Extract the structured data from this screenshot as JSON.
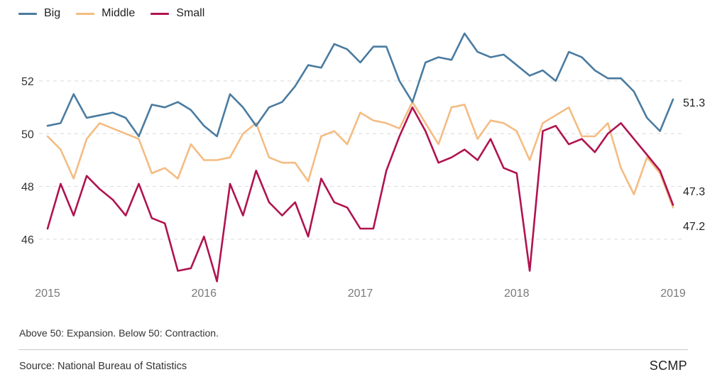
{
  "chart_data": {
    "type": "line",
    "title": "",
    "xlabel": "",
    "ylabel": "",
    "ylim": [
      44,
      54
    ],
    "x_start": "2015-01",
    "x_step": "month",
    "x_ticks": [
      "2015",
      "2016",
      "2017",
      "2018",
      "2019"
    ],
    "y_ticks": [
      46,
      48,
      50,
      52
    ],
    "grid": true,
    "legend_position": "top-left",
    "series": [
      {
        "name": "Big",
        "color": "#4a7ba0",
        "end_label": "51.3",
        "values": [
          50.3,
          50.4,
          51.5,
          50.6,
          50.7,
          50.8,
          50.6,
          49.9,
          51.1,
          51.0,
          51.2,
          50.9,
          50.3,
          49.9,
          51.5,
          51.0,
          50.3,
          51.0,
          51.2,
          51.8,
          52.6,
          52.5,
          53.4,
          53.2,
          52.7,
          53.3,
          53.3,
          52.0,
          51.2,
          52.7,
          52.9,
          52.8,
          53.8,
          53.1,
          52.9,
          53.0,
          52.6,
          52.2,
          52.4,
          52.0,
          53.1,
          52.9,
          52.4,
          52.1,
          52.1,
          51.6,
          50.6,
          50.1,
          51.3
        ]
      },
      {
        "name": "Middle",
        "color": "#f4bc82",
        "end_label": "47.2",
        "values": [
          49.9,
          49.4,
          48.3,
          49.8,
          50.4,
          50.2,
          50.0,
          49.8,
          48.5,
          48.7,
          48.3,
          49.6,
          49.0,
          49.0,
          49.1,
          50.0,
          50.4,
          49.1,
          48.9,
          48.9,
          48.2,
          49.9,
          50.1,
          49.6,
          50.8,
          50.5,
          50.4,
          50.2,
          51.2,
          50.4,
          49.6,
          51.0,
          51.1,
          49.8,
          50.5,
          50.4,
          50.1,
          49.0,
          50.4,
          50.7,
          51.0,
          49.9,
          49.9,
          50.4,
          48.7,
          47.7,
          49.1,
          48.5,
          47.2
        ]
      },
      {
        "name": "Small",
        "color": "#b0134f",
        "end_label": "47.3",
        "values": [
          46.4,
          48.1,
          46.9,
          48.4,
          47.9,
          47.5,
          46.9,
          48.1,
          46.8,
          46.6,
          44.8,
          44.9,
          46.1,
          44.4,
          48.1,
          46.9,
          48.6,
          47.4,
          46.9,
          47.4,
          46.1,
          48.3,
          47.4,
          47.2,
          46.4,
          46.4,
          48.6,
          49.9,
          51.0,
          50.1,
          48.9,
          49.1,
          49.4,
          49.0,
          49.8,
          48.7,
          48.5,
          44.8,
          50.1,
          50.3,
          49.6,
          49.8,
          49.3,
          50.0,
          50.4,
          49.8,
          49.2,
          48.6,
          47.3
        ]
      }
    ]
  },
  "legend": [
    {
      "label": "Big",
      "color": "#4a7ba0"
    },
    {
      "label": "Middle",
      "color": "#f4bc82"
    },
    {
      "label": "Small",
      "color": "#b0134f"
    }
  ],
  "footer": {
    "note": "Above 50: Expansion. Below 50: Contraction.",
    "source": "Source: National Bureau of Statistics",
    "brand": "SCMP"
  }
}
